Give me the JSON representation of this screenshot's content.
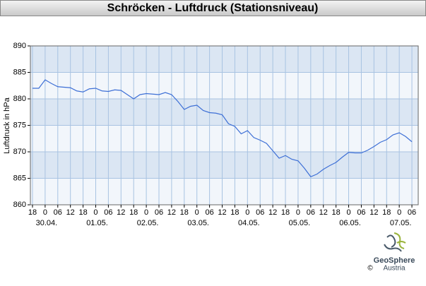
{
  "chart_data": {
    "type": "line",
    "title": "Schröcken - Luftdruck (Stationsniveau)",
    "y_label": "Luftdruck in hPa",
    "x": [
      "29.04. 18",
      "29.04. 21",
      "30.04. 00",
      "30.04. 03",
      "30.04. 06",
      "30.04. 09",
      "30.04. 12",
      "30.04. 15",
      "30.04. 18",
      "30.04. 21",
      "01.05. 00",
      "01.05. 03",
      "01.05. 06",
      "01.05. 09",
      "01.05. 12",
      "01.05. 15",
      "01.05. 18",
      "01.05. 21",
      "02.05. 00",
      "02.05. 03",
      "02.05. 06",
      "02.05. 09",
      "02.05. 12",
      "02.05. 15",
      "02.05. 18",
      "02.05. 21",
      "03.05. 00",
      "03.05. 03",
      "03.05. 06",
      "03.05. 09",
      "03.05. 12",
      "03.05. 15",
      "03.05. 18",
      "03.05. 21",
      "04.05. 00",
      "04.05. 03",
      "04.05. 06",
      "04.05. 09",
      "04.05. 12",
      "04.05. 15",
      "04.05. 18",
      "04.05. 21",
      "05.05. 00",
      "05.05. 03",
      "05.05. 06",
      "05.05. 09",
      "05.05. 12",
      "05.05. 15",
      "05.05. 18",
      "05.05. 21",
      "06.05. 00",
      "06.05. 03",
      "06.05. 06",
      "06.05. 09",
      "06.05. 12",
      "06.05. 15",
      "06.05. 18",
      "06.05. 21",
      "07.05. 00",
      "07.05. 03",
      "07.05. 06"
    ],
    "values": [
      882.0,
      882.0,
      883.6,
      882.9,
      882.3,
      882.2,
      882.1,
      881.5,
      881.3,
      881.9,
      882.0,
      881.5,
      881.4,
      881.7,
      881.6,
      880.8,
      880.0,
      880.8,
      881.0,
      880.9,
      880.8,
      881.2,
      880.8,
      879.5,
      878.0,
      878.6,
      878.8,
      877.8,
      877.4,
      877.3,
      877.0,
      875.3,
      874.8,
      873.4,
      874.0,
      872.7,
      872.2,
      871.6,
      870.2,
      868.8,
      869.3,
      868.6,
      868.3,
      866.9,
      865.3,
      865.8,
      866.7,
      867.4,
      868.0,
      869.0,
      869.9,
      869.8,
      869.8,
      870.3,
      871.0,
      871.8,
      872.3,
      873.2,
      873.6,
      872.9,
      871.9
    ],
    "color": "#3d6fd6",
    "xlim": [
      "29.04. 17",
      "07.05. 09"
    ],
    "xticks": [
      {
        "value": "29.04. 18",
        "label": "18"
      },
      {
        "value": "30.04. 00",
        "label": "0"
      },
      {
        "value": "30.04. 06",
        "label": "06"
      },
      {
        "value": "30.04. 12",
        "label": "12"
      },
      {
        "value": "30.04. 18",
        "label": "18"
      },
      {
        "value": "01.05. 00",
        "label": "0"
      },
      {
        "value": "01.05. 06",
        "label": "06"
      },
      {
        "value": "01.05. 12",
        "label": "12"
      },
      {
        "value": "01.05. 18",
        "label": "18"
      },
      {
        "value": "02.05. 00",
        "label": "0"
      },
      {
        "value": "02.05. 06",
        "label": "06"
      },
      {
        "value": "02.05. 12",
        "label": "12"
      },
      {
        "value": "02.05. 18",
        "label": "18"
      },
      {
        "value": "03.05. 00",
        "label": "0"
      },
      {
        "value": "03.05. 06",
        "label": "06"
      },
      {
        "value": "03.05. 12",
        "label": "12"
      },
      {
        "value": "03.05. 18",
        "label": "18"
      },
      {
        "value": "04.05. 00",
        "label": "0"
      },
      {
        "value": "04.05. 06",
        "label": "06"
      },
      {
        "value": "04.05. 12",
        "label": "12"
      },
      {
        "value": "04.05. 18",
        "label": "18"
      },
      {
        "value": "05.05. 00",
        "label": "0"
      },
      {
        "value": "05.05. 06",
        "label": "06"
      },
      {
        "value": "05.05. 12",
        "label": "12"
      },
      {
        "value": "05.05. 18",
        "label": "18"
      },
      {
        "value": "06.05. 00",
        "label": "0"
      },
      {
        "value": "06.05. 06",
        "label": "06"
      },
      {
        "value": "06.05. 12",
        "label": "12"
      },
      {
        "value": "06.05. 18",
        "label": "18"
      },
      {
        "value": "07.05. 00",
        "label": "0"
      },
      {
        "value": "07.05. 06",
        "label": "06"
      }
    ],
    "date_labels": [
      {
        "value": "30.04. 00",
        "label": "30.04."
      },
      {
        "value": "01.05. 00",
        "label": "01.05."
      },
      {
        "value": "02.05. 00",
        "label": "02.05."
      },
      {
        "value": "03.05. 00",
        "label": "03.05."
      },
      {
        "value": "04.05. 00",
        "label": "04.05."
      },
      {
        "value": "05.05. 00",
        "label": "05.05."
      },
      {
        "value": "06.05. 00",
        "label": "06.05."
      },
      {
        "value": "07.05. 00",
        "label": "07.05."
      }
    ],
    "ylim": [
      860,
      890
    ],
    "yticks": [
      860,
      865,
      870,
      875,
      880,
      885,
      890
    ],
    "grid": true
  },
  "footer": {
    "logo_name": "GeoSphere",
    "logo_sub": "Austria",
    "copyright": "©"
  }
}
